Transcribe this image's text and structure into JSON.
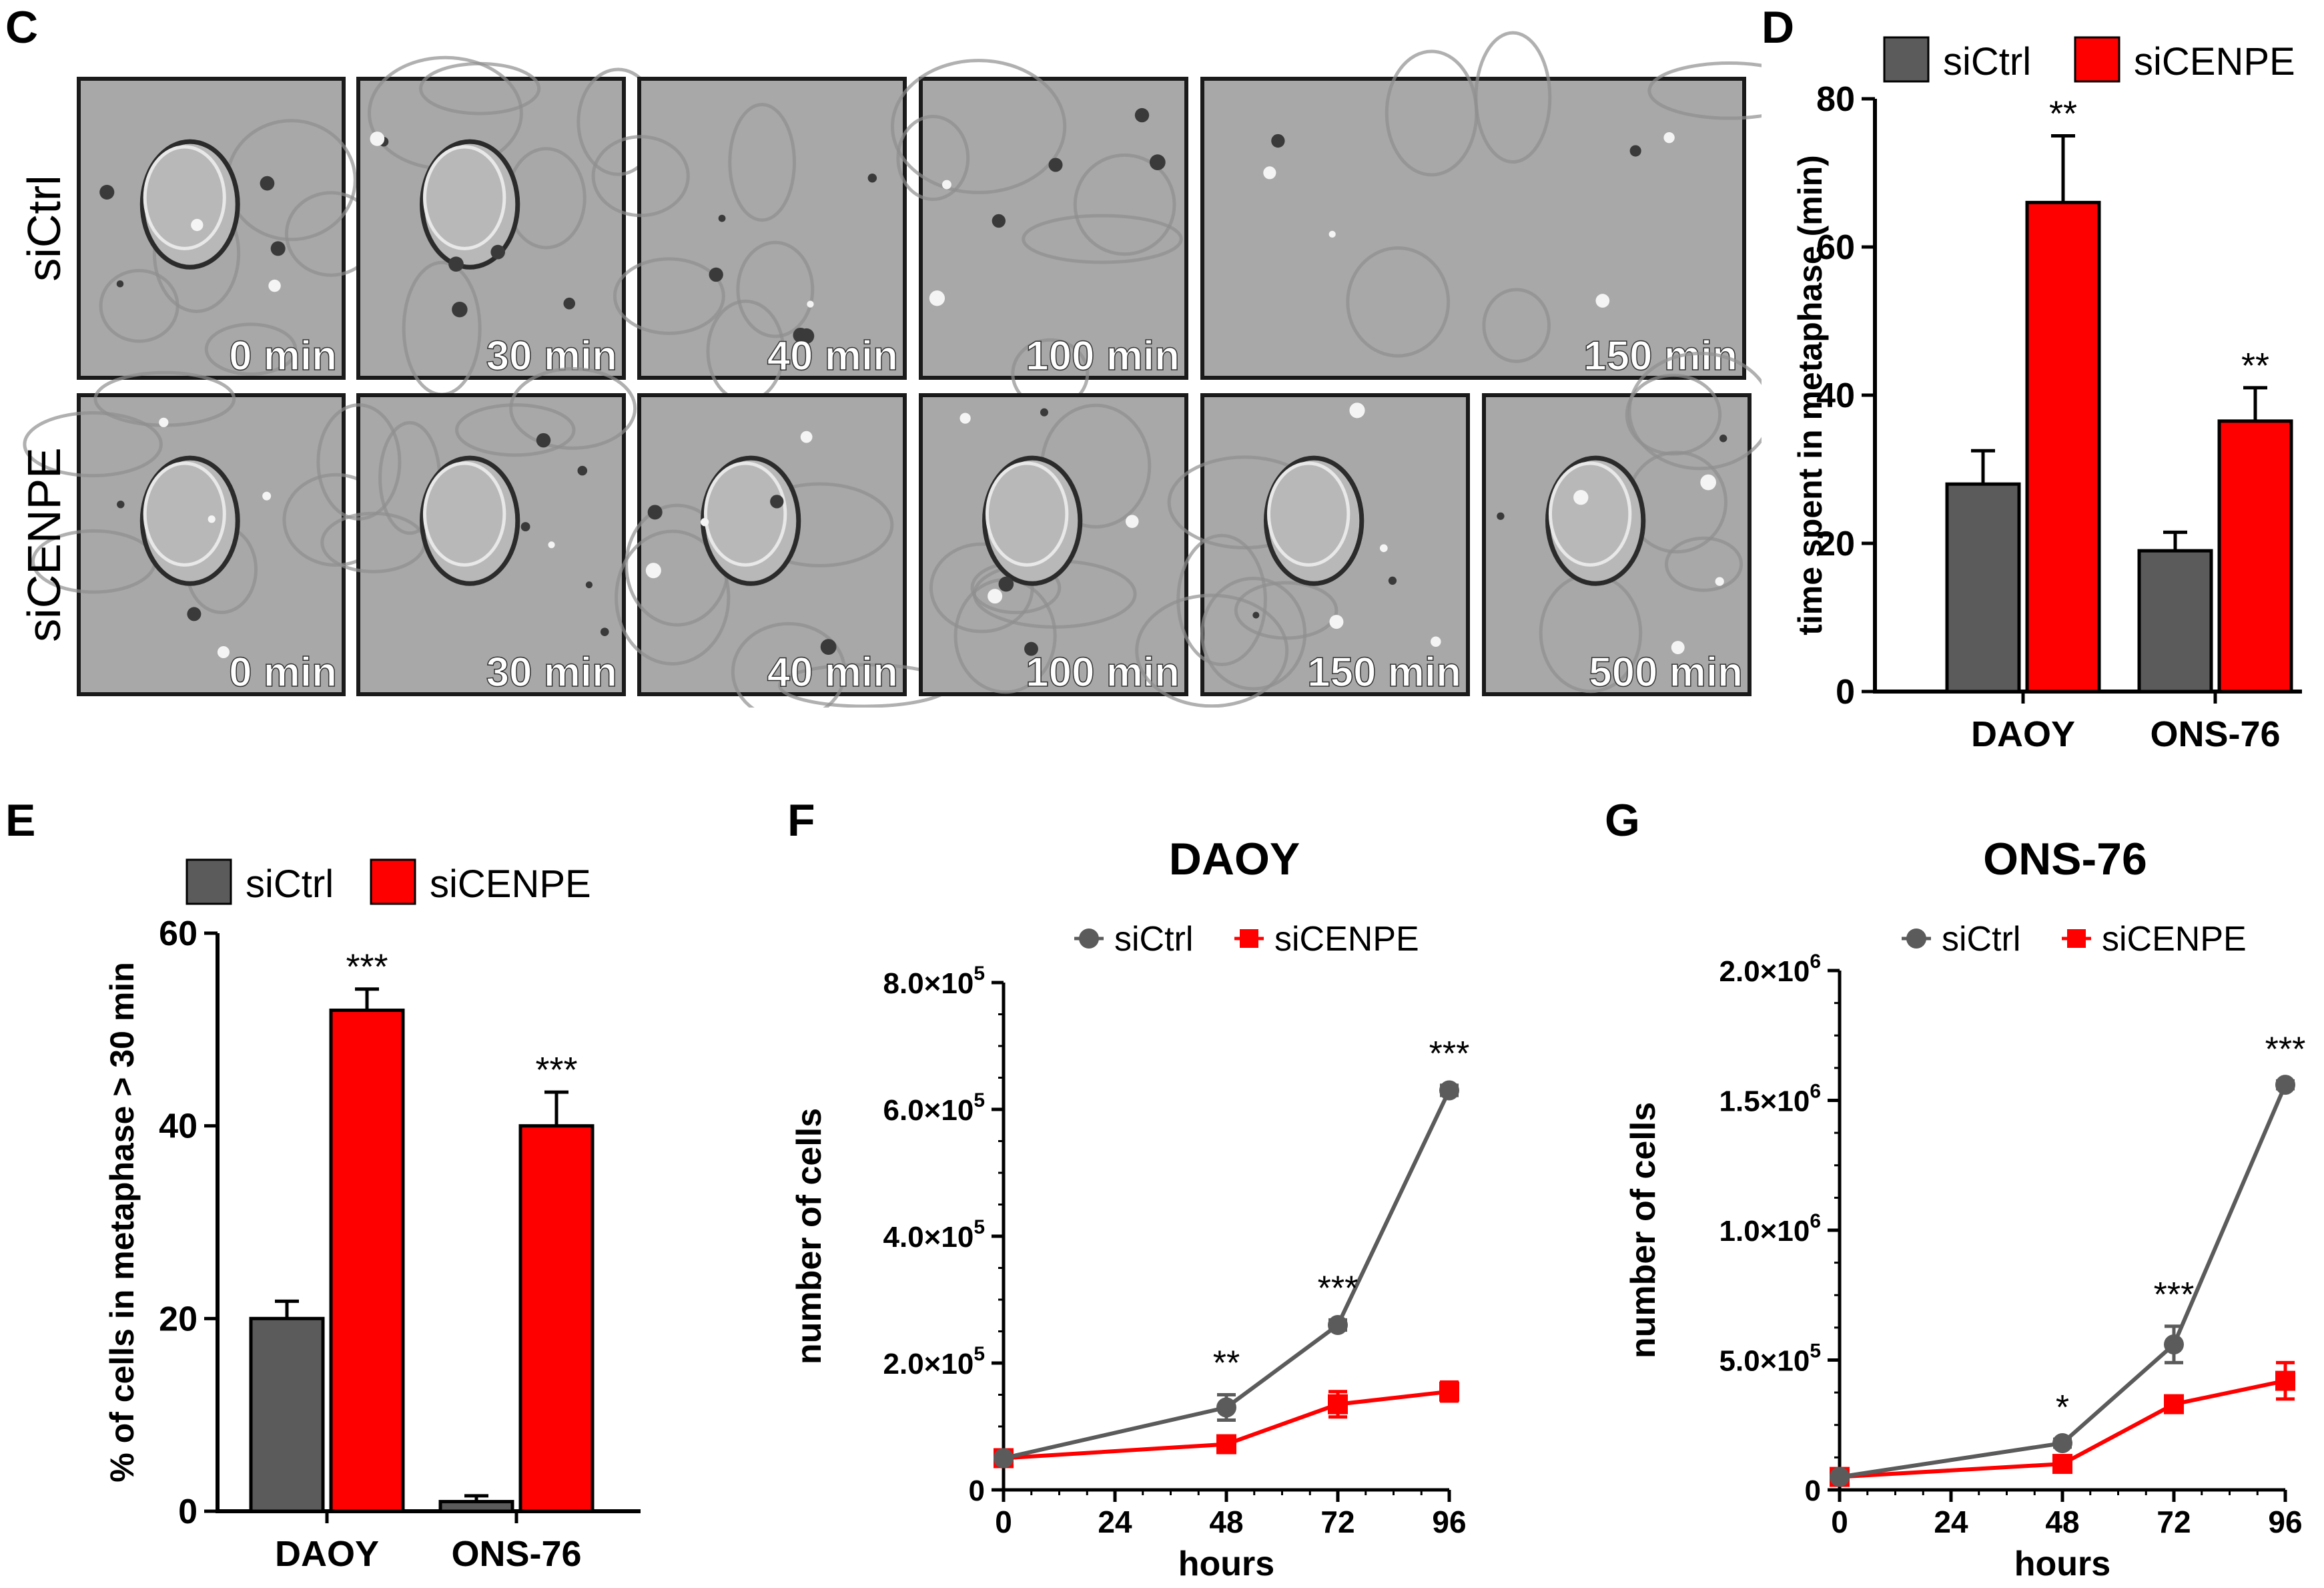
{
  "panels": {
    "c": "C",
    "d": "D",
    "e": "E",
    "f": "F",
    "g": "G"
  },
  "colors": {
    "ctrl": "#5b5b5b",
    "cenpe": "#ff0000",
    "micro_bg": "#a8a8a8",
    "micro_border": "#1a1a1a"
  },
  "micrographs": {
    "row_labels": [
      "siCtrl",
      "siCENPE"
    ],
    "siCtrl_times": [
      "0 min",
      "30 min",
      "40 min",
      "100 min",
      "150 min"
    ],
    "siCENPE_times": [
      "0 min",
      "30 min",
      "40 min",
      "100 min",
      "150 min",
      "500 min"
    ]
  },
  "chart_data": [
    {
      "id": "D",
      "type": "bar",
      "categories": [
        "DAOY",
        "ONS-76"
      ],
      "series": [
        {
          "name": "siCtrl",
          "values": [
            28,
            19
          ],
          "errors": [
            4.5,
            2.5
          ]
        },
        {
          "name": "siCENPE",
          "values": [
            66,
            36.5
          ],
          "errors": [
            9,
            4.5
          ]
        }
      ],
      "significance": [
        "**",
        "**"
      ],
      "ylabel": "time spent in metaphase (min)",
      "ylim": [
        0,
        80
      ],
      "yticks": [
        "0",
        "20",
        "40",
        "60",
        "80"
      ],
      "legend": "top",
      "grid": false
    },
    {
      "id": "E",
      "type": "bar",
      "categories": [
        "DAOY",
        "ONS-76"
      ],
      "series": [
        {
          "name": "siCtrl",
          "values": [
            20,
            1
          ],
          "errors": [
            1.8,
            0.6
          ]
        },
        {
          "name": "siCENPE",
          "values": [
            52,
            40
          ],
          "errors": [
            2.2,
            3.5
          ]
        }
      ],
      "significance": [
        "***",
        "***"
      ],
      "ylabel": "% of cells in metaphase > 30 min",
      "ylim": [
        0,
        60
      ],
      "yticks": [
        "0",
        "20",
        "40",
        "60"
      ],
      "legend": "top",
      "grid": false
    },
    {
      "id": "F",
      "type": "line",
      "title": "DAOY",
      "x": [
        0,
        48,
        72,
        96
      ],
      "xticks": [
        "0",
        "24",
        "48",
        "72",
        "96"
      ],
      "series": [
        {
          "name": "siCtrl",
          "values": [
            50000,
            130000,
            260000,
            630000
          ],
          "errors": [
            0,
            20000,
            8000,
            8000
          ]
        },
        {
          "name": "siCENPE",
          "values": [
            50000,
            72000,
            135000,
            155000
          ],
          "errors": [
            0,
            8000,
            20000,
            15000
          ]
        }
      ],
      "significance": [
        {
          "x": 48,
          "label": "**"
        },
        {
          "x": 72,
          "label": "***"
        },
        {
          "x": 96,
          "label": "***"
        }
      ],
      "xlabel": "hours",
      "ylabel": "number of cells",
      "ylim": [
        0,
        800000
      ],
      "ytick_values": [
        0,
        200000,
        400000,
        600000,
        800000
      ],
      "yticks": [
        {
          "mantissa": "0",
          "exp": ""
        },
        {
          "mantissa": "2.0×10",
          "exp": "5"
        },
        {
          "mantissa": "4.0×10",
          "exp": "5"
        },
        {
          "mantissa": "6.0×10",
          "exp": "5"
        },
        {
          "mantissa": "8.0×10",
          "exp": "5"
        }
      ],
      "legend": "top",
      "grid": false
    },
    {
      "id": "G",
      "type": "line",
      "title": "ONS-76",
      "x": [
        0,
        48,
        72,
        96
      ],
      "xticks": [
        "0",
        "24",
        "48",
        "72",
        "96"
      ],
      "series": [
        {
          "name": "siCtrl",
          "values": [
            50000,
            180000,
            560000,
            1560000
          ],
          "errors": [
            0,
            15000,
            70000,
            15000
          ]
        },
        {
          "name": "siCENPE",
          "values": [
            50000,
            100000,
            330000,
            420000
          ],
          "errors": [
            0,
            10000,
            25000,
            70000
          ]
        }
      ],
      "significance": [
        {
          "x": 48,
          "label": "*"
        },
        {
          "x": 72,
          "label": "***"
        },
        {
          "x": 96,
          "label": "***"
        }
      ],
      "xlabel": "hours",
      "ylabel": "number of cells",
      "ylim": [
        0,
        2000000
      ],
      "ytick_values": [
        0,
        500000,
        1000000,
        1500000,
        2000000
      ],
      "yticks": [
        {
          "mantissa": "0",
          "exp": ""
        },
        {
          "mantissa": "5.0×10",
          "exp": "5"
        },
        {
          "mantissa": "1.0×10",
          "exp": "6"
        },
        {
          "mantissa": "1.5×10",
          "exp": "6"
        },
        {
          "mantissa": "2.0×10",
          "exp": "6"
        }
      ],
      "legend": "top",
      "grid": false
    }
  ]
}
